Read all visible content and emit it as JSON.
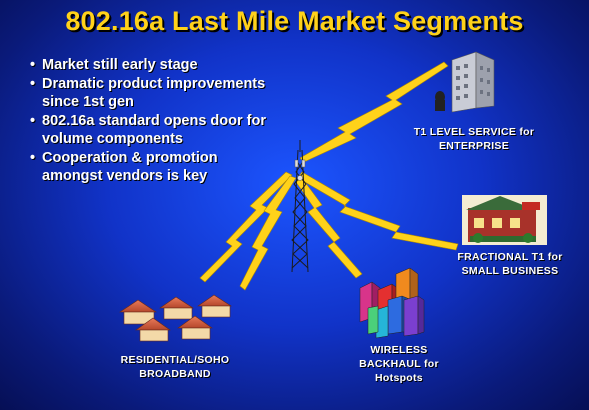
{
  "title": "802.16a Last Mile Market Segments",
  "bullets": [
    "Market still early stage",
    "Dramatic product improvements",
    "since 1st gen",
    "802.16a standard opens door for",
    "volume components",
    "Cooperation & promotion",
    "amongst vendors is key"
  ],
  "segments": {
    "enterprise": {
      "line1": "T1 LEVEL SERVICE for",
      "line2": "ENTERPRISE"
    },
    "small_business": {
      "line1": "FRACTIONAL T1  for",
      "line2": "SMALL BUSINESS"
    },
    "residential": {
      "line1": "RESIDENTIAL/SOHO",
      "line2": "BROADBAND"
    },
    "backhaul": {
      "line1": "WIRELESS",
      "line2": "BACKHAUL for",
      "line3": "Hotspots"
    }
  },
  "colors": {
    "title": "#ffd21a",
    "lightning": "#ffd21a",
    "background": "#1133c8",
    "tower": "#222222"
  },
  "icons": [
    "lightning-bolt-icon",
    "radio-tower-icon",
    "office-building-icon",
    "shop-icon",
    "house-icon",
    "city-skyline-icon"
  ]
}
